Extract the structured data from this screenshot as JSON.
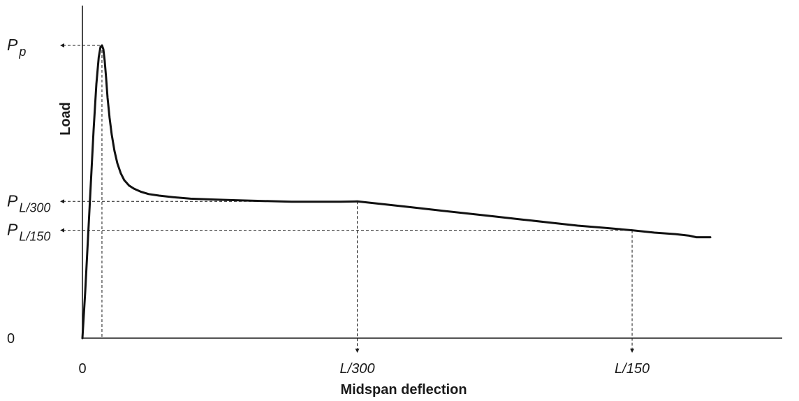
{
  "chart_data": {
    "type": "line",
    "title": "",
    "xlabel": "Midspan deflection",
    "ylabel": "Load",
    "xlim": [
      0,
      1
    ],
    "ylim": [
      0,
      1
    ],
    "grid": false,
    "legend": "none",
    "line_color": "#111111",
    "x_ticks": [
      {
        "label": "0",
        "value": 0,
        "italic": false
      },
      {
        "label": "L/300",
        "value": 0.4278,
        "italic": true
      },
      {
        "label": "L/150",
        "value": 0.8555,
        "italic": true
      }
    ],
    "y_ticks": [
      {
        "label": "0",
        "value": 0
      }
    ],
    "load_markers": [
      {
        "symbol": "P",
        "subscript": "p",
        "value": 1.0,
        "at_x": 0.0304
      },
      {
        "symbol": "P",
        "subscript": "L/300",
        "value": 0.4671,
        "at_x": 0.4278
      },
      {
        "symbol": "P",
        "subscript": "L/150",
        "value": 0.3684,
        "at_x": 0.8555
      }
    ],
    "series": [
      {
        "x": [
          0,
          0.0043,
          0.0087,
          0.013,
          0.0174,
          0.0217,
          0.0254,
          0.0282,
          0.0304,
          0.0326,
          0.0347,
          0.0369,
          0.0391,
          0.0423,
          0.0456,
          0.0499,
          0.0543,
          0.0597,
          0.0651,
          0.0727,
          0.0803,
          0.0911,
          0.1031,
          0.1194,
          0.1411,
          0.1683,
          0.2009,
          0.2389,
          0.282,
          0.3255,
          0.3689,
          0.4018,
          0.4278,
          0.4668,
          0.5103,
          0.5537,
          0.5971,
          0.6406,
          0.684,
          0.7275,
          0.7709,
          0.8144,
          0.8555,
          0.8903,
          0.9229,
          0.9446,
          0.9555,
          0.9663,
          0.9772
        ],
        "y": [
          0,
          0.1579,
          0.3421,
          0.5263,
          0.7105,
          0.8684,
          0.9605,
          0.9947,
          1.0,
          0.9868,
          0.9474,
          0.8895,
          0.8211,
          0.7526,
          0.6947,
          0.6395,
          0.5974,
          0.5632,
          0.5395,
          0.5211,
          0.5105,
          0.5,
          0.4921,
          0.4868,
          0.4816,
          0.4763,
          0.4737,
          0.4711,
          0.4684,
          0.4658,
          0.4658,
          0.4658,
          0.4671,
          0.4579,
          0.4474,
          0.4368,
          0.4263,
          0.4158,
          0.4053,
          0.3947,
          0.3842,
          0.3763,
          0.3684,
          0.3605,
          0.3553,
          0.35,
          0.3447,
          0.3447,
          0.3447
        ]
      }
    ]
  }
}
